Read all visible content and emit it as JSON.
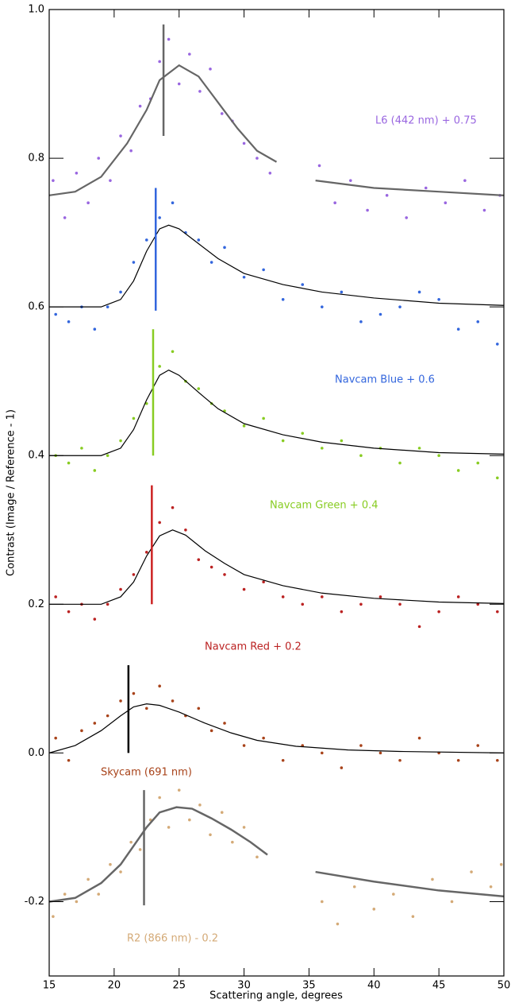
{
  "chart_data": {
    "type": "scatter",
    "x_label": "Scattering angle, degrees",
    "y_label": "Contrast (Image / Reference - 1)",
    "xlim": [
      15,
      50
    ],
    "ylim": [
      -0.3,
      1.0
    ],
    "xticks": [
      15,
      20,
      25,
      30,
      35,
      40,
      45,
      50
    ],
    "yticks": [
      -0.2,
      {
        "value": 0,
        "label": "0.0"
      },
      0.2,
      0.4,
      0.6,
      0.8,
      {
        "value": 1,
        "label": "1.0"
      }
    ],
    "series": [
      {
        "name": "L6 (442 nm) + 0.75",
        "color": "#9966e0",
        "x": [
          15.3,
          16.2,
          17.1,
          18,
          18.8,
          19.7,
          20.5,
          21.3,
          22,
          22.8,
          23.5,
          24.2,
          25,
          25.8,
          26.6,
          27.4,
          28.3,
          29.1,
          30,
          31,
          32,
          35.8,
          37,
          38.2,
          39.5,
          41,
          42.5,
          44,
          45.5,
          47,
          48.5,
          49.7
        ],
        "values": [
          0.77,
          0.72,
          0.78,
          0.74,
          0.8,
          0.77,
          0.83,
          0.81,
          0.87,
          0.88,
          0.93,
          0.96,
          0.9,
          0.94,
          0.89,
          0.92,
          0.86,
          0.85,
          0.82,
          0.8,
          0.78,
          0.79,
          0.74,
          0.77,
          0.73,
          0.75,
          0.72,
          0.76,
          0.74,
          0.77,
          0.73,
          0.75
        ],
        "fit": {
          "color": "#666666",
          "x": [
            15,
            17,
            19,
            21,
            22.5,
            23.5,
            25,
            26.5,
            28,
            29.5,
            31,
            32.5,
            34,
            35.5,
            40,
            45,
            50
          ],
          "values": [
            0.75,
            0.755,
            0.775,
            0.82,
            0.865,
            0.905,
            0.925,
            0.91,
            0.875,
            0.84,
            0.81,
            0.795,
            null,
            0.77,
            0.76,
            0.755,
            0.75
          ]
        },
        "marker": {
          "color": "#666666",
          "x": 23.8,
          "y": [
            0.83,
            0.98
          ]
        }
      },
      {
        "name": "Navcam Blue + 0.6",
        "color": "#3366dd",
        "x": [
          15.5,
          16.5,
          17.5,
          18.5,
          19.5,
          20.5,
          21.5,
          22.5,
          23.5,
          24.5,
          25.5,
          26.5,
          27.5,
          28.5,
          30,
          31.5,
          33,
          34.5,
          36,
          37.5,
          39,
          40.5,
          42,
          43.5,
          45,
          46.5,
          48,
          49.5
        ],
        "values": [
          0.59,
          0.58,
          0.6,
          0.57,
          0.6,
          0.62,
          0.66,
          0.69,
          0.72,
          0.74,
          0.7,
          0.69,
          0.66,
          0.68,
          0.64,
          0.65,
          0.61,
          0.63,
          0.6,
          0.62,
          0.58,
          0.59,
          0.6,
          0.62,
          0.61,
          0.57,
          0.58,
          0.55
        ],
        "fit": {
          "color": "#000000",
          "x": [
            15,
            19,
            20.5,
            21.5,
            22.5,
            23.5,
            24.2,
            25,
            26.5,
            28,
            30,
            33,
            36,
            40,
            45,
            50
          ],
          "values": [
            0.6,
            0.6,
            0.61,
            0.635,
            0.675,
            0.705,
            0.71,
            0.705,
            0.685,
            0.665,
            0.645,
            0.63,
            0.62,
            0.612,
            0.605,
            0.602
          ]
        },
        "marker": {
          "color": "#3366dd",
          "x": 23.2,
          "y": [
            0.595,
            0.76
          ]
        }
      },
      {
        "name": "Navcam Green + 0.4",
        "color": "#88cc22",
        "x": [
          15.5,
          16.5,
          17.5,
          18.5,
          19.5,
          20.5,
          21.5,
          22.5,
          23.5,
          24.5,
          25.5,
          26.5,
          27.5,
          28.5,
          30,
          31.5,
          33,
          34.5,
          36,
          37.5,
          39,
          40.5,
          42,
          43.5,
          45,
          46.5,
          48,
          49.5
        ],
        "values": [
          0.4,
          0.39,
          0.41,
          0.38,
          0.4,
          0.42,
          0.45,
          0.47,
          0.52,
          0.54,
          0.5,
          0.49,
          0.47,
          0.46,
          0.44,
          0.45,
          0.42,
          0.43,
          0.41,
          0.42,
          0.4,
          0.41,
          0.39,
          0.41,
          0.4,
          0.38,
          0.39,
          0.37
        ],
        "fit": {
          "color": "#000000",
          "x": [
            15,
            19,
            20.5,
            21.5,
            22.5,
            23.5,
            24.2,
            25,
            26.5,
            28,
            30,
            33,
            36,
            40,
            45,
            50
          ],
          "values": [
            0.4,
            0.4,
            0.41,
            0.435,
            0.475,
            0.508,
            0.515,
            0.508,
            0.485,
            0.463,
            0.443,
            0.428,
            0.418,
            0.41,
            0.404,
            0.402
          ]
        },
        "marker": {
          "color": "#88cc22",
          "x": 23.0,
          "y": [
            0.4,
            0.57
          ]
        }
      },
      {
        "name": "Navcam Red + 0.2",
        "color": "#bb2222",
        "x": [
          15.5,
          16.5,
          17.5,
          18.5,
          19.5,
          20.5,
          21.5,
          22.5,
          23.5,
          24.5,
          25.5,
          26.5,
          27.5,
          28.5,
          30,
          31.5,
          33,
          34.5,
          36,
          37.5,
          39,
          40.5,
          42,
          43.5,
          45,
          46.5,
          48,
          49.5
        ],
        "values": [
          0.21,
          0.19,
          0.2,
          0.18,
          0.2,
          0.22,
          0.24,
          0.27,
          0.31,
          0.33,
          0.3,
          0.26,
          0.25,
          0.24,
          0.22,
          0.23,
          0.21,
          0.2,
          0.21,
          0.19,
          0.2,
          0.21,
          0.2,
          0.17,
          0.19,
          0.21,
          0.2,
          0.19
        ],
        "fit": {
          "color": "#000000",
          "x": [
            15,
            19,
            20.5,
            21.5,
            22.5,
            23.5,
            24.5,
            25.5,
            27,
            28.5,
            30,
            33,
            36,
            40,
            45,
            50
          ],
          "values": [
            0.2,
            0.2,
            0.21,
            0.23,
            0.265,
            0.292,
            0.3,
            0.293,
            0.272,
            0.255,
            0.24,
            0.225,
            0.215,
            0.208,
            0.203,
            0.201
          ]
        },
        "marker": {
          "color": "#cc2222",
          "x": 22.9,
          "y": [
            0.2,
            0.36
          ]
        }
      },
      {
        "name": "Skycam (691 nm)",
        "color": "#a8431a",
        "x": [
          15.5,
          16.5,
          17.5,
          18.5,
          19.5,
          20.5,
          21.5,
          22.5,
          23.5,
          24.5,
          25.5,
          26.5,
          27.5,
          28.5,
          30,
          31.5,
          33,
          34.5,
          36,
          37.5,
          39,
          40.5,
          42,
          43.5,
          45,
          46.5,
          48,
          49.5
        ],
        "values": [
          0.02,
          -0.01,
          0.03,
          0.04,
          0.05,
          0.07,
          0.08,
          0.06,
          0.09,
          0.07,
          0.05,
          0.06,
          0.03,
          0.04,
          0.01,
          0.02,
          -0.01,
          0.01,
          0,
          -0.02,
          0.01,
          0,
          -0.01,
          0.02,
          0,
          -0.01,
          0.01,
          -0.01
        ],
        "fit": {
          "color": "#000000",
          "x": [
            15,
            17,
            19,
            20.5,
            21.5,
            22.5,
            23.5,
            25,
            27,
            29,
            31,
            34,
            38,
            42,
            50
          ],
          "values": [
            0,
            0.01,
            0.03,
            0.05,
            0.062,
            0.066,
            0.064,
            0.055,
            0.04,
            0.027,
            0.017,
            0.009,
            0.004,
            0.002,
            0
          ]
        },
        "marker": {
          "color": "#000000",
          "x": 21.1,
          "y": [
            0.0,
            0.118
          ]
        }
      },
      {
        "name": "R2 (866 nm) - 0.2",
        "color": "#d4aa77",
        "x": [
          15.3,
          16.2,
          17.1,
          18,
          18.8,
          19.7,
          20.5,
          21.3,
          22,
          22.8,
          23.5,
          24.2,
          25,
          25.8,
          26.6,
          27.4,
          28.3,
          29.1,
          30,
          31,
          36,
          37.2,
          38.5,
          40,
          41.5,
          43,
          44.5,
          46,
          47.5,
          49,
          49.8
        ],
        "values": [
          -0.22,
          -0.19,
          -0.2,
          -0.17,
          -0.19,
          -0.15,
          -0.16,
          -0.12,
          -0.13,
          -0.09,
          -0.06,
          -0.1,
          -0.05,
          -0.09,
          -0.07,
          -0.11,
          -0.08,
          -0.12,
          -0.1,
          -0.14,
          -0.2,
          -0.23,
          -0.18,
          -0.21,
          -0.19,
          -0.22,
          -0.17,
          -0.2,
          -0.16,
          -0.18,
          -0.15
        ],
        "fit": {
          "color": "#666666",
          "x": [
            15,
            17,
            19,
            20.5,
            21.5,
            22.5,
            23.5,
            24.8,
            26,
            27.5,
            29,
            30.5,
            31.8,
            33.5,
            35.5,
            40,
            45,
            50
          ],
          "values": [
            -0.2,
            -0.195,
            -0.175,
            -0.15,
            -0.125,
            -0.1,
            -0.08,
            -0.073,
            -0.075,
            -0.088,
            -0.103,
            -0.12,
            -0.137,
            null,
            -0.16,
            -0.173,
            -0.185,
            -0.193
          ]
        },
        "marker": {
          "color": "#666666",
          "x": 22.3,
          "y": [
            -0.205,
            -0.05
          ]
        }
      }
    ]
  }
}
